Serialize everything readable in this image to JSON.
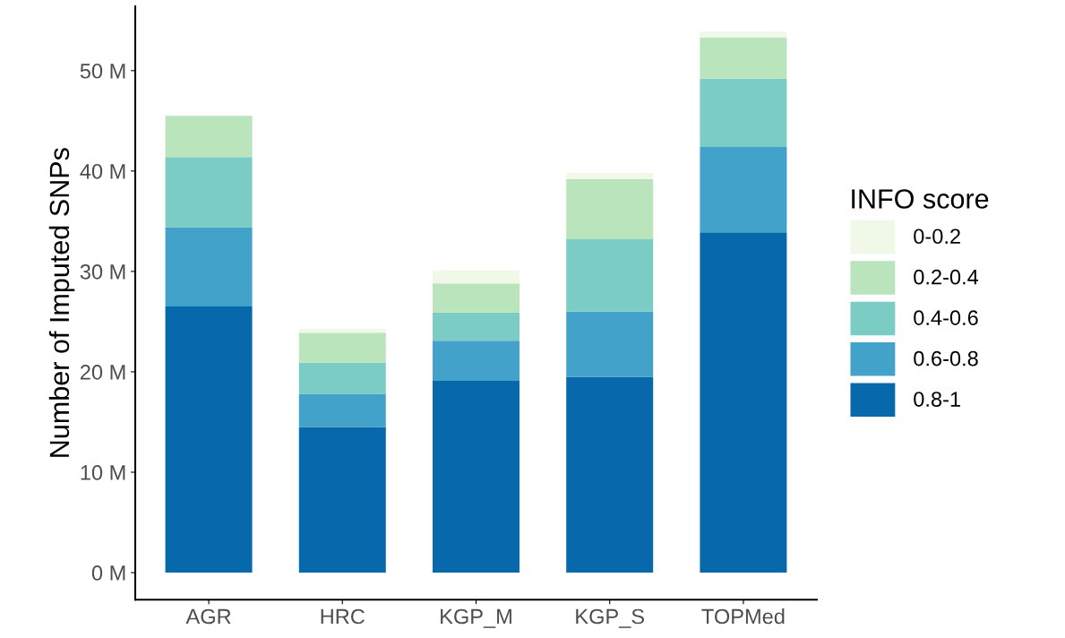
{
  "chart_data": {
    "type": "bar",
    "stacked": true,
    "ylabel": "Number of Imputed SNPs",
    "legend_title": "INFO score",
    "legend": "right",
    "grid": false,
    "categories": [
      "AGR",
      "HRC",
      "KGP_M",
      "KGP_S",
      "TOPMed"
    ],
    "ylim": [
      -2.7,
      56.4
    ],
    "yticks": [
      {
        "value": 0,
        "label": "0 M"
      },
      {
        "value": 10,
        "label": "10 M"
      },
      {
        "value": 20,
        "label": "20 M"
      },
      {
        "value": 30,
        "label": "30 M"
      },
      {
        "value": 40,
        "label": "40 M"
      },
      {
        "value": 50,
        "label": "50 M"
      }
    ],
    "series": [
      {
        "name": "0.8-1",
        "color": "#0868ac",
        "values": [
          26.5,
          14.5,
          19.1,
          19.5,
          33.9
        ]
      },
      {
        "name": "0.6-0.8",
        "color": "#43a2ca",
        "values": [
          7.9,
          3.3,
          4.0,
          6.5,
          8.5
        ]
      },
      {
        "name": "0.4-0.6",
        "color": "#7bccc4",
        "values": [
          7.0,
          3.1,
          2.8,
          7.2,
          6.8
        ]
      },
      {
        "name": "0.2-0.4",
        "color": "#bae4bc",
        "values": [
          4.1,
          3.0,
          2.9,
          6.0,
          4.1
        ]
      },
      {
        "name": "0-0.2",
        "color": "#f0f9e8",
        "values": [
          null,
          0.4,
          1.3,
          0.6,
          0.6
        ]
      }
    ]
  }
}
